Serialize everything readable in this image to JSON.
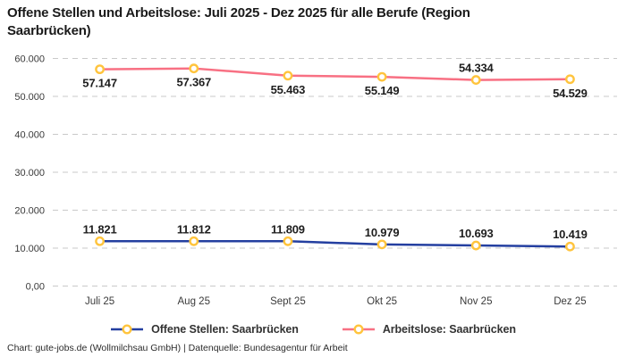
{
  "title": "Offene Stellen und Arbeitslose: Juli 2025 - Dez 2025 für alle Berufe (Region Saarbrücken)",
  "footer": "Chart: gute-jobs.de (Wollmilchsau GmbH) | Datenquelle: Bundesagentur für Arbeit",
  "colors": {
    "open_positions_line": "#243fa0",
    "unemployed_line": "#f87083",
    "marker_ring": "#ffc43d",
    "marker_fill": "#ffffff",
    "gridline": "#c9c9c9",
    "axis_text": "#3a3a3a",
    "data_label_text": "#1e1e1e",
    "title_text": "#1a1a1a",
    "legend_text": "#333333"
  },
  "chart_data": {
    "type": "line",
    "title": "Offene Stellen und Arbeitslose: Juli 2025 - Dez 2025 für alle Berufe (Region Saarbrücken)",
    "categories": [
      "Juli 25",
      "Aug 25",
      "Sept 25",
      "Okt 25",
      "Nov 25",
      "Dez 25"
    ],
    "series": [
      {
        "name": "Offene Stellen: Saarbrücken",
        "color": "#243fa0",
        "values": [
          11821,
          11812,
          11809,
          10979,
          10693,
          10419
        ],
        "labels": [
          "11.821",
          "11.812",
          "11.809",
          "10.979",
          "10.693",
          "10.419"
        ],
        "label_positions": [
          "above",
          "above",
          "above",
          "above",
          "above",
          "above"
        ]
      },
      {
        "name": "Arbeitslose: Saarbrücken",
        "color": "#f87083",
        "values": [
          57147,
          57367,
          55463,
          55149,
          54334,
          54529
        ],
        "labels": [
          "57.147",
          "57.367",
          "55.463",
          "55.149",
          "54.334",
          "54.529"
        ],
        "label_positions": [
          "below",
          "below",
          "below",
          "below",
          "above",
          "below"
        ]
      }
    ],
    "xlabel": "",
    "ylabel": "",
    "ylim": [
      0,
      60000
    ],
    "yticks": [
      {
        "value": 0,
        "label": "0,00"
      },
      {
        "value": 10000,
        "label": "10.000"
      },
      {
        "value": 20000,
        "label": "20.000"
      },
      {
        "value": 30000,
        "label": "30.000"
      },
      {
        "value": 40000,
        "label": "40.000"
      },
      {
        "value": 50000,
        "label": "50.000"
      },
      {
        "value": 60000,
        "label": "60.000"
      }
    ],
    "grid": "horizontal-dashed",
    "legend_position": "bottom"
  }
}
